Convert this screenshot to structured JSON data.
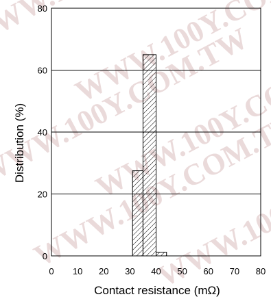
{
  "chart_data": {
    "type": "bar",
    "xlabel": "Contact resistance (mΩ)",
    "ylabel": "Distribution (%)",
    "xlim": [
      0,
      80
    ],
    "ylim": [
      0,
      80
    ],
    "x_ticks": [
      "0",
      "10",
      "20",
      "30",
      "40",
      "50",
      "60",
      "70",
      "80"
    ],
    "y_ticks": [
      "0",
      "20",
      "40",
      "60",
      "80"
    ],
    "grid": "horizontal",
    "bar_fill": "diagonal-hatch",
    "bins": [
      {
        "x0": 31,
        "x1": 35,
        "value": 27.5
      },
      {
        "x0": 35,
        "x1": 40,
        "value": 65
      },
      {
        "x0": 40,
        "x1": 44,
        "value": 1.2
      }
    ]
  },
  "watermark": {
    "text": "WWW.100Y.COM.TW",
    "color": "#eadada"
  }
}
